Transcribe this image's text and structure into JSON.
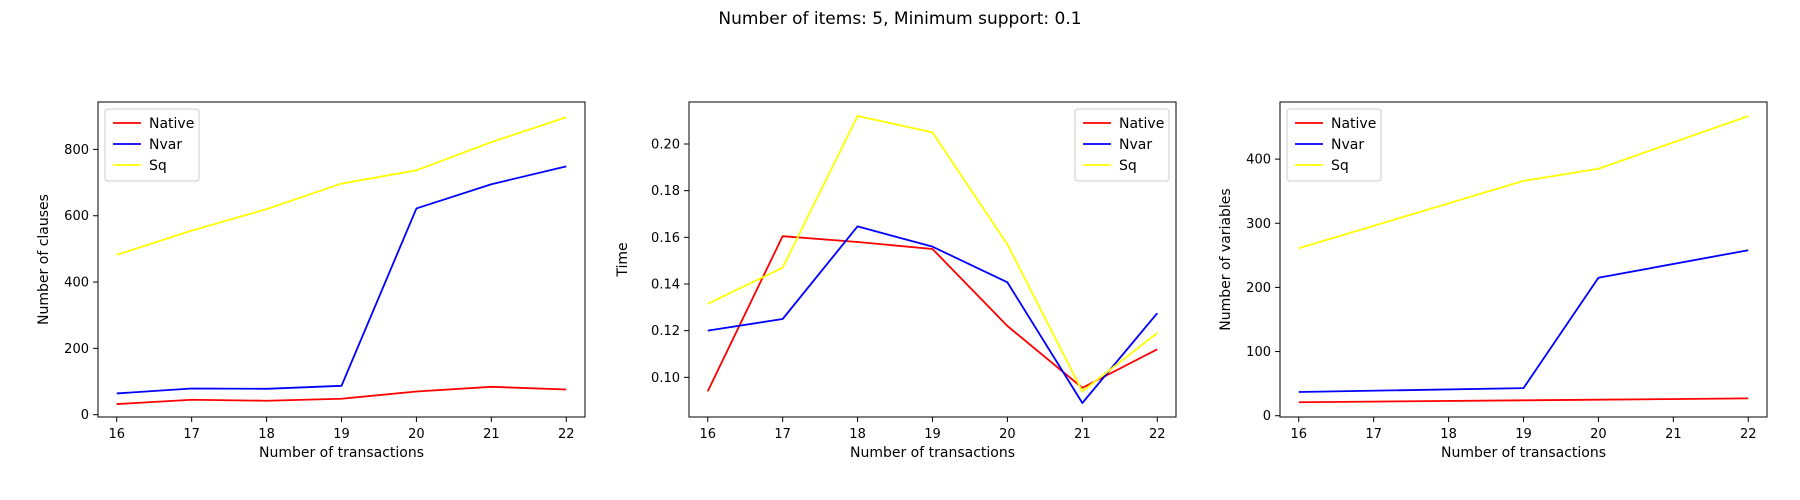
{
  "figure": {
    "suptitle": "Number of items: 5, Minimum support: 0.1"
  },
  "chart_data": [
    {
      "type": "line",
      "title": "",
      "xlabel": "Number of transactions",
      "ylabel": "Number of clauses",
      "x": [
        16,
        17,
        18,
        19,
        20,
        21,
        22
      ],
      "xlim": [
        15.75,
        22.25
      ],
      "ylim": [
        -7,
        943
      ],
      "yticks": [
        0,
        200,
        400,
        600,
        800
      ],
      "xticks": [
        16,
        17,
        18,
        19,
        20,
        21,
        22
      ],
      "legend_position": "upper left",
      "series": [
        {
          "name": "Native",
          "color": "#ff0000",
          "values": [
            32,
            45,
            42,
            48,
            70,
            84,
            76
          ]
        },
        {
          "name": "Nvar",
          "color": "#0000ff",
          "values": [
            64,
            79,
            78,
            87,
            622,
            695,
            749
          ]
        },
        {
          "name": "Sq",
          "color": "#ffff00",
          "values": [
            482,
            555,
            620,
            697,
            737,
            822,
            897
          ]
        }
      ]
    },
    {
      "type": "line",
      "title": "",
      "xlabel": "Number of transactions",
      "ylabel": "Time",
      "x": [
        16,
        17,
        18,
        19,
        20,
        21,
        22
      ],
      "xlim": [
        15.75,
        22.25
      ],
      "ylim": [
        0.083,
        0.218
      ],
      "yticks": [
        0.1,
        0.12,
        0.14,
        0.16,
        0.18,
        0.2
      ],
      "ytick_labels": [
        "0.10",
        "0.12",
        "0.14",
        "0.16",
        "0.18",
        "0.20"
      ],
      "xticks": [
        16,
        17,
        18,
        19,
        20,
        21,
        22
      ],
      "legend_position": "upper right",
      "series": [
        {
          "name": "Native",
          "color": "#ff0000",
          "values": [
            0.094,
            0.1605,
            0.158,
            0.155,
            0.122,
            0.0955,
            0.112
          ]
        },
        {
          "name": "Nvar",
          "color": "#0000ff",
          "values": [
            0.12,
            0.125,
            0.1647,
            0.156,
            0.1407,
            0.089,
            0.1275
          ]
        },
        {
          "name": "Sq",
          "color": "#ffff00",
          "values": [
            0.1315,
            0.147,
            0.212,
            0.205,
            0.157,
            0.094,
            0.119
          ]
        }
      ]
    },
    {
      "type": "line",
      "title": "",
      "xlabel": "Number of transactions",
      "ylabel": "Number of variables",
      "x": [
        16,
        17,
        18,
        19,
        20,
        21,
        22
      ],
      "xlim": [
        15.75,
        22.25
      ],
      "ylim": [
        -2,
        489
      ],
      "yticks": [
        0,
        100,
        200,
        300,
        400
      ],
      "xticks": [
        16,
        17,
        18,
        19,
        20,
        21,
        22
      ],
      "legend_position": "upper left",
      "series": [
        {
          "name": "Native",
          "color": "#ff0000",
          "x": [
            16,
            19,
            20,
            22
          ],
          "values": [
            21,
            24,
            25,
            27
          ]
        },
        {
          "name": "Nvar",
          "color": "#0000ff",
          "x": [
            16,
            19,
            20,
            22
          ],
          "values": [
            37,
            43,
            215,
            258
          ]
        },
        {
          "name": "Sq",
          "color": "#ffff00",
          "x": [
            16,
            19,
            20,
            22
          ],
          "values": [
            261,
            366,
            385,
            467
          ]
        }
      ]
    }
  ]
}
